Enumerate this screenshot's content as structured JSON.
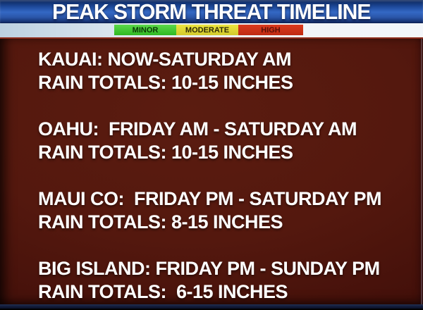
{
  "header": {
    "title": "PEAK STORM THREAT TIMELINE"
  },
  "legend": {
    "items": [
      {
        "label": "MINOR",
        "color": "#3fc72f",
        "text_color": "#0b3a06"
      },
      {
        "label": "MODERATE",
        "color": "#e0d835",
        "text_color": "#2e2a06"
      },
      {
        "label": "HIGH",
        "color": "#cc3118",
        "text_color": "#5c1008"
      }
    ]
  },
  "timeline": {
    "entries": [
      {
        "region_line": "KAUAI: NOW-SATURDAY AM",
        "rain_line": "RAIN TOTALS: 10-15 INCHES"
      },
      {
        "region_line": "OAHU:  FRIDAY AM - SATURDAY AM",
        "rain_line": "RAIN TOTALS: 10-15 INCHES"
      },
      {
        "region_line": "MAUI CO:  FRIDAY PM - SATURDAY PM",
        "rain_line": "RAIN TOTALS: 8-15 INCHES"
      },
      {
        "region_line": "BIG ISLAND: FRIDAY PM - SUNDAY PM",
        "rain_line": "RAIN TOTALS:  6-15 INCHES"
      }
    ]
  },
  "colors": {
    "banner_blue": "#2a5cb4",
    "body_maroon": "#54180e",
    "bottom_navy": "#121c3a",
    "text_white": "#ffffff"
  }
}
